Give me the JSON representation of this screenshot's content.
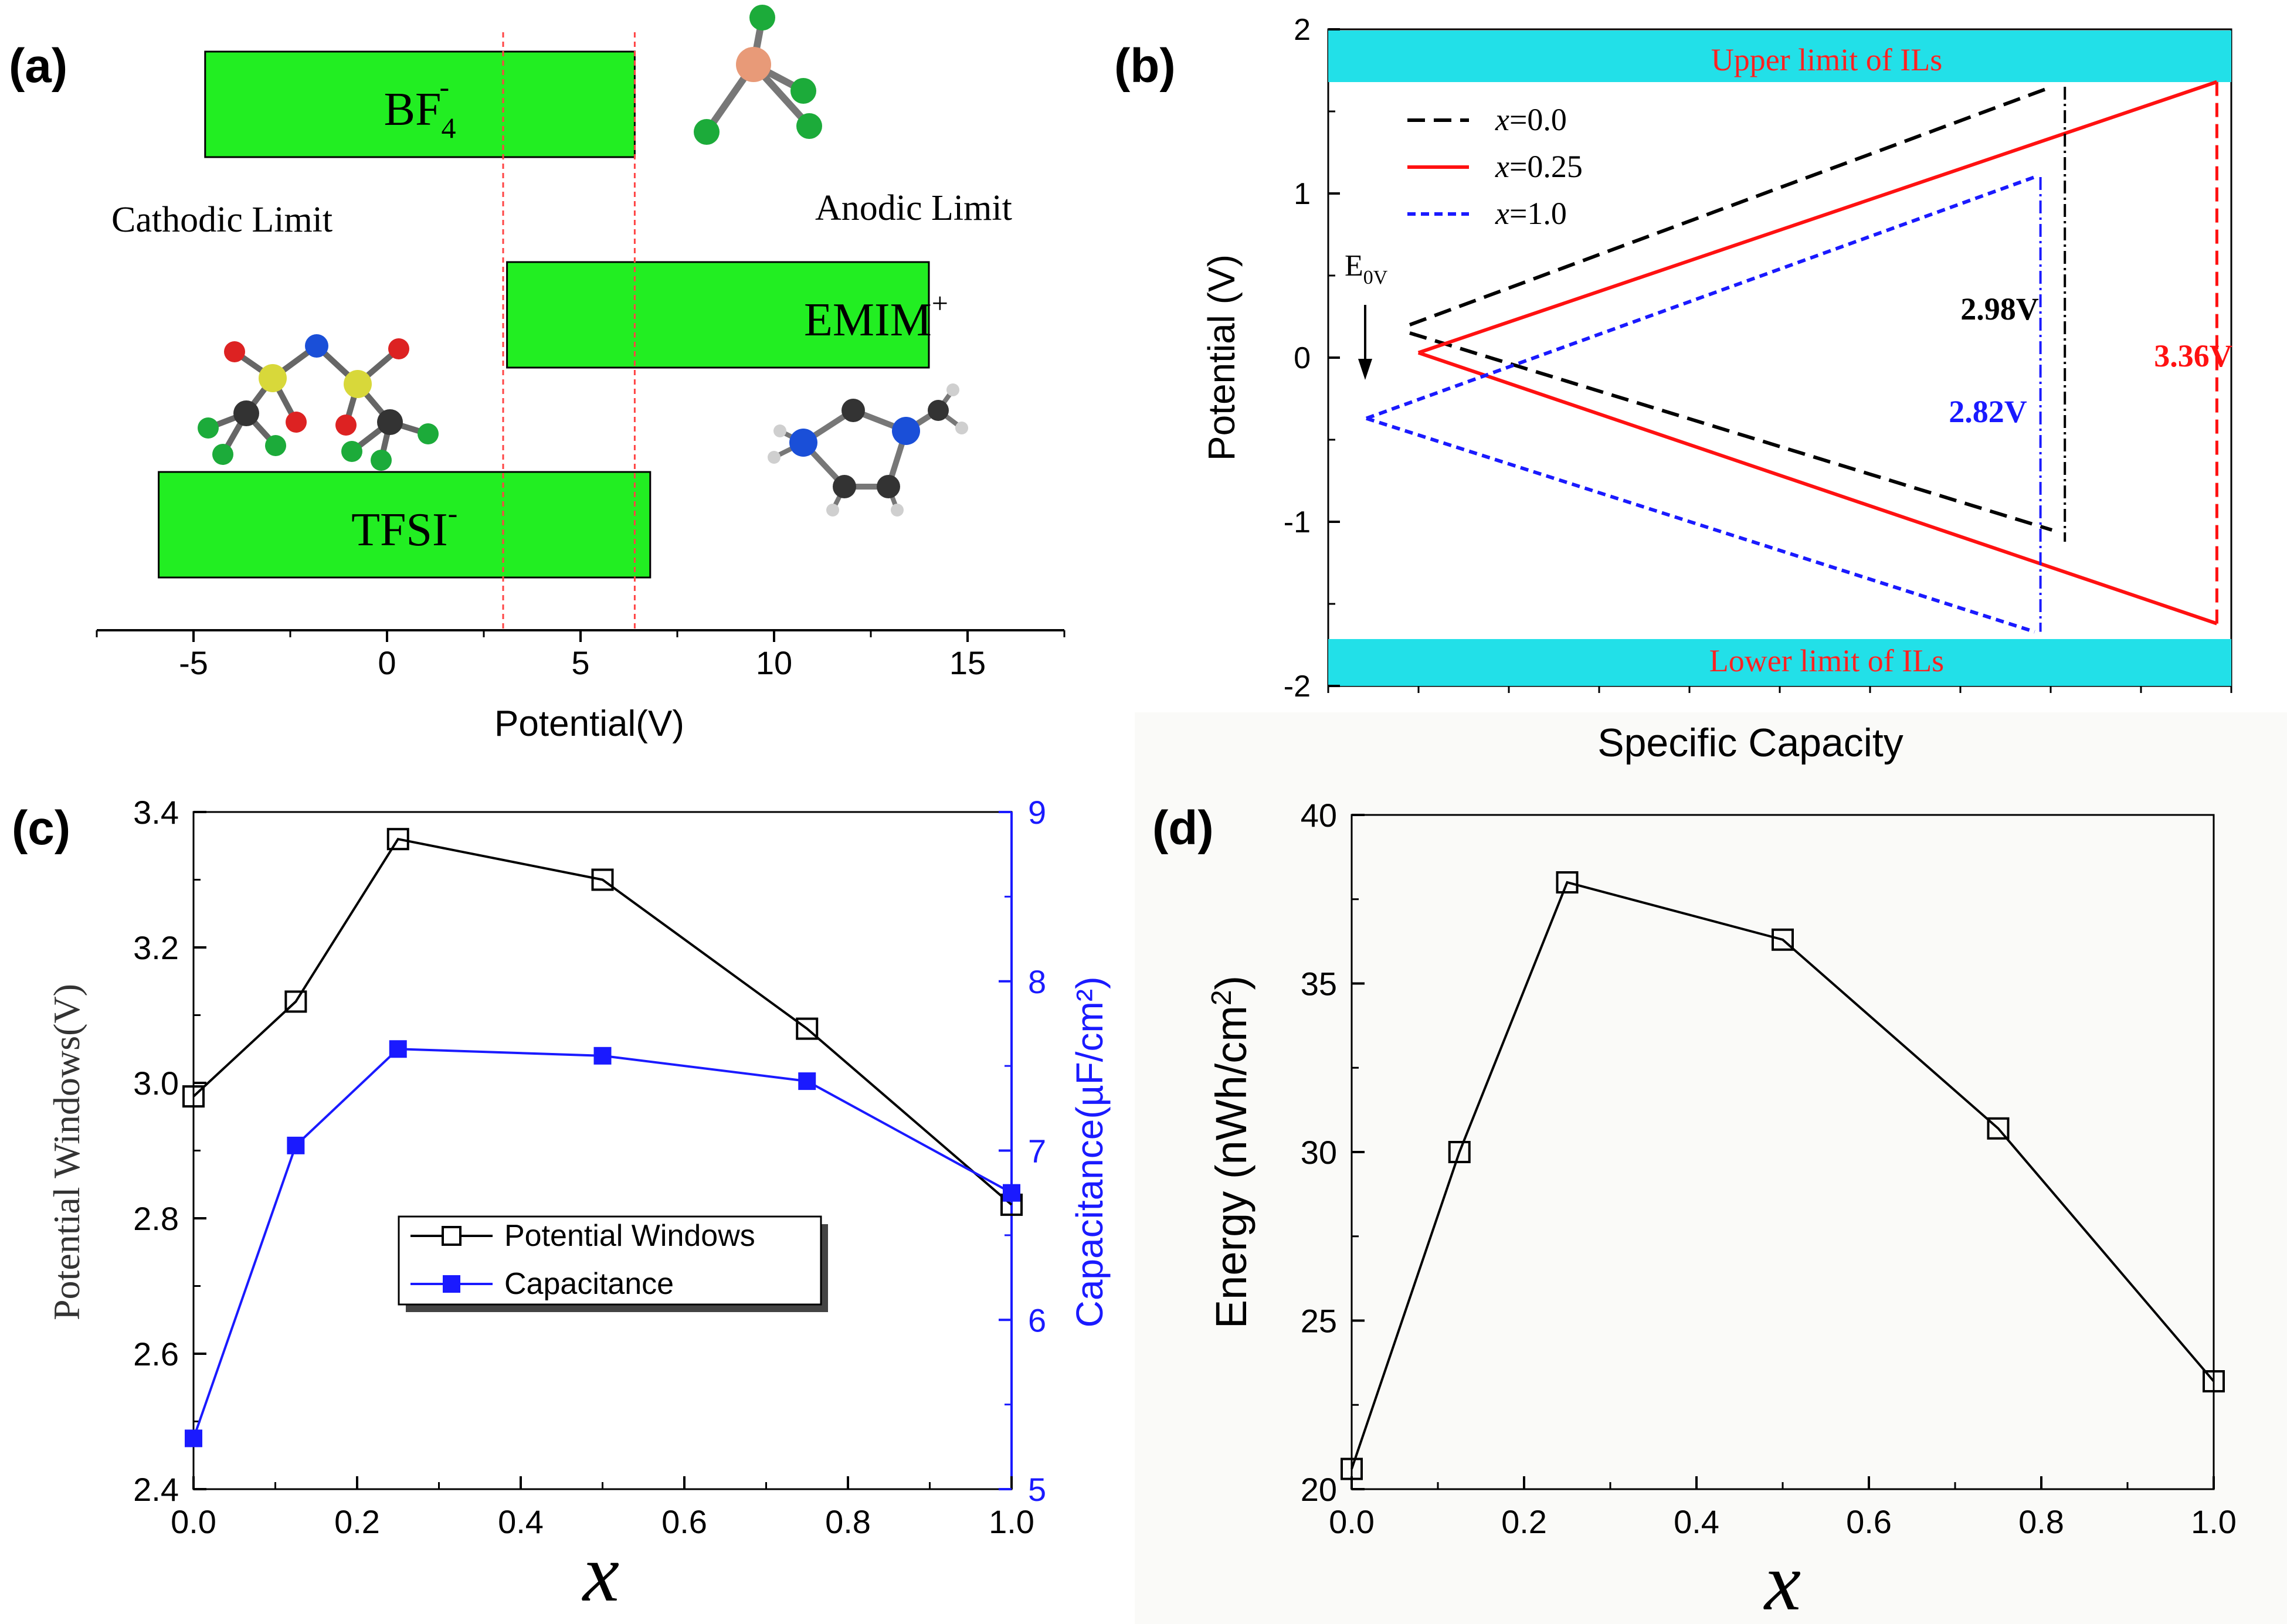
{
  "chart_data": [
    {
      "panel_label": "(a)",
      "type": "bar",
      "orientation": "horizontal",
      "xlabel": "Potential(V)",
      "xlim": [
        -7.5,
        17.5
      ],
      "xticks": [
        -5,
        0,
        5,
        10,
        15
      ],
      "xtick_labels": [
        "-5",
        "0",
        "5",
        "10",
        "15"
      ],
      "bars": [
        {
          "label": "BF",
          "sub": "4",
          "sup": "-",
          "start": -4.7,
          "end": 6.4
        },
        {
          "label": "EMIM",
          "sub": "",
          "sup": "+",
          "start": 3.1,
          "end": 14.0
        },
        {
          "label": "TFSI",
          "sub": "",
          "sup": "-",
          "start": -5.9,
          "end": 6.8
        }
      ],
      "vlines": [
        3.0,
        6.4
      ],
      "annotations": [
        "Cathodic Limit",
        "Anodic Limit"
      ],
      "bar_color": "#22ee22",
      "vline_color": "#ff4444"
    },
    {
      "panel_label": "(b)",
      "type": "line",
      "xlabel": "Specific Capacity",
      "ylabel": "Potential (V)",
      "ylim": [
        -2,
        2
      ],
      "yticks": [
        -2,
        -1,
        0,
        1,
        2
      ],
      "ytick_labels": [
        "-2",
        "-1",
        "0",
        "1",
        "2"
      ],
      "upper_band": "Upper limit of ILs",
      "lower_band": "Lower limit of ILs",
      "band_color": "#22e0e8",
      "e0_label": {
        "main": "E",
        "sub": "0V"
      },
      "series": [
        {
          "name": "x=0.0",
          "legend_var": "x",
          "legend_rest": "=0.0",
          "color": "#000000",
          "dash": "long",
          "x": [
            0.05,
            0.79,
            0.05,
            0.79
          ],
          "y": [
            0.2,
            1.65,
            0.15,
            -1.05
          ]
        },
        {
          "name": "x=0.25",
          "legend_var": "x",
          "legend_rest": "=0.25",
          "color": "#ff1111",
          "dash": "solid",
          "x": [
            0.06,
            0.98,
            0.06,
            0.98
          ],
          "y": [
            0.03,
            1.68,
            0.03,
            -1.62
          ]
        },
        {
          "name": "x=1.0",
          "legend_var": "x",
          "legend_rest": "=1.0",
          "color": "#1a1aff",
          "dash": "short",
          "x": [
            0.0,
            0.77,
            0.0,
            0.77
          ],
          "y": [
            -0.37,
            1.1,
            -0.37,
            -1.67
          ]
        }
      ],
      "window_labels": [
        {
          "text": "2.98V",
          "color": "#000000"
        },
        {
          "text": "3.36V",
          "color": "#ff1111"
        },
        {
          "text": "2.82V",
          "color": "#1a1aff"
        }
      ]
    },
    {
      "panel_label": "(c)",
      "type": "line",
      "xlabel": "x",
      "ylabel": "Potential Windows(V)",
      "ylabel_right": "Capacitance(µF/cm²)",
      "xlim": [
        0,
        1
      ],
      "ylim": [
        2.4,
        3.4
      ],
      "ylim_right": [
        5,
        9
      ],
      "xtick_labels": [
        "0.0",
        "0.2",
        "0.4",
        "0.6",
        "0.8",
        "1.0"
      ],
      "ytick_labels": [
        "2.4",
        "2.6",
        "2.8",
        "3.0",
        "3.2",
        "3.4"
      ],
      "ytick_labels_right": [
        "5",
        "6",
        "7",
        "8",
        "9"
      ],
      "x": [
        0.0,
        0.125,
        0.25,
        0.5,
        0.75,
        1.0
      ],
      "series": [
        {
          "name": "Potential Windows",
          "axis": "left",
          "color": "#000000",
          "marker": "open-square",
          "values": [
            2.98,
            3.12,
            3.36,
            3.3,
            3.08,
            2.82
          ]
        },
        {
          "name": "Capacitance",
          "axis": "right",
          "color": "#1a1aff",
          "marker": "filled-square",
          "values": [
            5.3,
            7.03,
            7.6,
            7.56,
            7.41,
            6.75
          ]
        }
      ]
    },
    {
      "panel_label": "(d)",
      "type": "line",
      "xlabel": "x",
      "ylabel": "Energy (nWh/cm²)",
      "xlim": [
        0,
        1
      ],
      "ylim": [
        20,
        40
      ],
      "xtick_labels": [
        "0.0",
        "0.2",
        "0.4",
        "0.6",
        "0.8",
        "1.0"
      ],
      "ytick_labels": [
        "20",
        "25",
        "30",
        "35",
        "40"
      ],
      "x": [
        0.0,
        0.125,
        0.25,
        0.5,
        0.75,
        1.0
      ],
      "series": [
        {
          "name": "Energy",
          "color": "#000000",
          "marker": "open-square",
          "values": [
            20.6,
            30.0,
            38.0,
            36.3,
            30.7,
            23.2
          ]
        }
      ]
    }
  ]
}
